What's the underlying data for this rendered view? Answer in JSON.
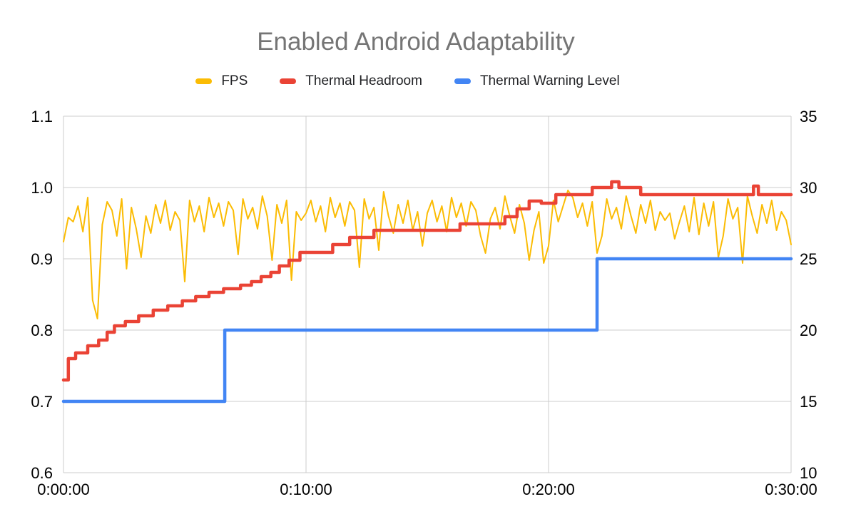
{
  "chart_data": {
    "type": "line",
    "title": "Enabled Android Adaptability",
    "title_color": "#757575",
    "background_color": "#ffffff",
    "grid_color": "#cccccc",
    "tick_color": "#000000",
    "legend_text_color": "#202124",
    "legend_position": "top",
    "grid": true,
    "x_axis": {
      "unit": "elapsed time (h:mm:ss)",
      "min_minutes": 0,
      "max_minutes": 30,
      "ticks": [
        {
          "minutes": 0,
          "label": "0:00:00"
        },
        {
          "minutes": 10,
          "label": "0:10:00"
        },
        {
          "minutes": 20,
          "label": "0:20:00"
        },
        {
          "minutes": 30,
          "label": "0:30:00"
        }
      ]
    },
    "left_axis": {
      "min": 0.6,
      "max": 1.1,
      "ticks": [
        {
          "v": 0.6,
          "label": "0.6"
        },
        {
          "v": 0.7,
          "label": "0.7"
        },
        {
          "v": 0.8,
          "label": "0.8"
        },
        {
          "v": 0.9,
          "label": "0.9"
        },
        {
          "v": 1.0,
          "label": "1.0"
        },
        {
          "v": 1.1,
          "label": "1.1"
        }
      ]
    },
    "right_axis": {
      "min": 10,
      "max": 35,
      "ticks": [
        {
          "v": 10,
          "label": "10"
        },
        {
          "v": 15,
          "label": "15"
        },
        {
          "v": 20,
          "label": "20"
        },
        {
          "v": 25,
          "label": "25"
        },
        {
          "v": 30,
          "label": "30"
        },
        {
          "v": 35,
          "label": "35"
        }
      ]
    },
    "series": [
      {
        "name": "FPS",
        "color": "#FBBC04",
        "axis": "right",
        "interpolation": "linear",
        "stroke_width": 2,
        "start_minutes": 0,
        "step_minutes": 0.2,
        "values": [
          26.2,
          27.9,
          27.6,
          28.7,
          26.9,
          29.3,
          22.1,
          20.8,
          27.4,
          29.0,
          28.4,
          26.6,
          29.2,
          24.3,
          28.6,
          27.1,
          25.1,
          28.0,
          26.8,
          28.8,
          27.5,
          29.1,
          27.0,
          28.3,
          27.7,
          23.4,
          29.1,
          27.6,
          28.7,
          26.9,
          29.3,
          27.9,
          28.9,
          27.3,
          29.0,
          28.4,
          25.3,
          29.2,
          27.8,
          28.6,
          27.1,
          29.4,
          28.0,
          24.9,
          28.8,
          27.5,
          29.1,
          23.5,
          28.3,
          27.7,
          28.2,
          29.1,
          27.6,
          28.7,
          26.9,
          29.3,
          27.9,
          28.9,
          27.3,
          29.0,
          28.4,
          24.4,
          29.2,
          27.8,
          28.6,
          25.6,
          29.7,
          28.0,
          26.8,
          28.8,
          27.5,
          29.1,
          27.0,
          28.3,
          25.9,
          28.2,
          29.1,
          27.6,
          28.7,
          26.9,
          29.3,
          27.9,
          28.9,
          27.3,
          29.0,
          28.4,
          26.6,
          25.4,
          27.8,
          28.6,
          27.1,
          29.4,
          28.0,
          26.8,
          28.8,
          27.5,
          24.9,
          27.0,
          28.3,
          24.7,
          25.9,
          29.1,
          27.6,
          28.7,
          29.8,
          29.3,
          27.9,
          28.9,
          27.3,
          29.0,
          25.4,
          26.6,
          29.2,
          27.8,
          28.6,
          27.1,
          29.4,
          28.0,
          26.8,
          28.8,
          27.5,
          29.1,
          27.0,
          28.3,
          27.7,
          28.2,
          26.4,
          27.6,
          28.7,
          26.9,
          29.3,
          26.7,
          28.9,
          27.3,
          29.0,
          25.1,
          26.6,
          29.2,
          27.8,
          28.6,
          24.7,
          29.4,
          28.0,
          26.8,
          28.8,
          27.5,
          29.1,
          27.0,
          28.3,
          27.7,
          26.0
        ]
      },
      {
        "name": "Thermal Headroom",
        "color": "#EA4335",
        "axis": "left",
        "interpolation": "step-after",
        "stroke_width": 4.5,
        "points": [
          [
            0.0,
            0.73
          ],
          [
            0.2,
            0.76
          ],
          [
            0.5,
            0.768
          ],
          [
            1.0,
            0.778
          ],
          [
            1.45,
            0.786
          ],
          [
            1.8,
            0.797
          ],
          [
            2.1,
            0.806
          ],
          [
            2.55,
            0.812
          ],
          [
            3.1,
            0.82
          ],
          [
            3.7,
            0.828
          ],
          [
            4.3,
            0.834
          ],
          [
            4.9,
            0.841
          ],
          [
            5.45,
            0.847
          ],
          [
            6.0,
            0.853
          ],
          [
            6.6,
            0.858
          ],
          [
            7.3,
            0.863
          ],
          [
            7.75,
            0.868
          ],
          [
            8.15,
            0.875
          ],
          [
            8.55,
            0.881
          ],
          [
            8.9,
            0.89
          ],
          [
            9.3,
            0.898
          ],
          [
            9.75,
            0.909
          ],
          [
            11.1,
            0.92
          ],
          [
            11.8,
            0.93
          ],
          [
            12.8,
            0.94
          ],
          [
            16.35,
            0.949
          ],
          [
            18.2,
            0.959
          ],
          [
            18.7,
            0.97
          ],
          [
            19.2,
            0.981
          ],
          [
            19.7,
            0.978
          ],
          [
            20.3,
            0.99
          ],
          [
            21.8,
            1.0
          ],
          [
            22.6,
            1.008
          ],
          [
            22.9,
            1.0
          ],
          [
            23.8,
            0.99
          ],
          [
            28.45,
            1.002
          ],
          [
            28.65,
            0.99
          ],
          [
            30.0,
            0.99
          ]
        ]
      },
      {
        "name": "Thermal Warning Level",
        "color": "#4285F4",
        "axis": "left",
        "interpolation": "step-after",
        "stroke_width": 4.5,
        "points": [
          [
            0.0,
            0.7
          ],
          [
            6.65,
            0.8
          ],
          [
            22.0,
            0.9
          ],
          [
            30.0,
            0.9
          ]
        ]
      }
    ]
  }
}
